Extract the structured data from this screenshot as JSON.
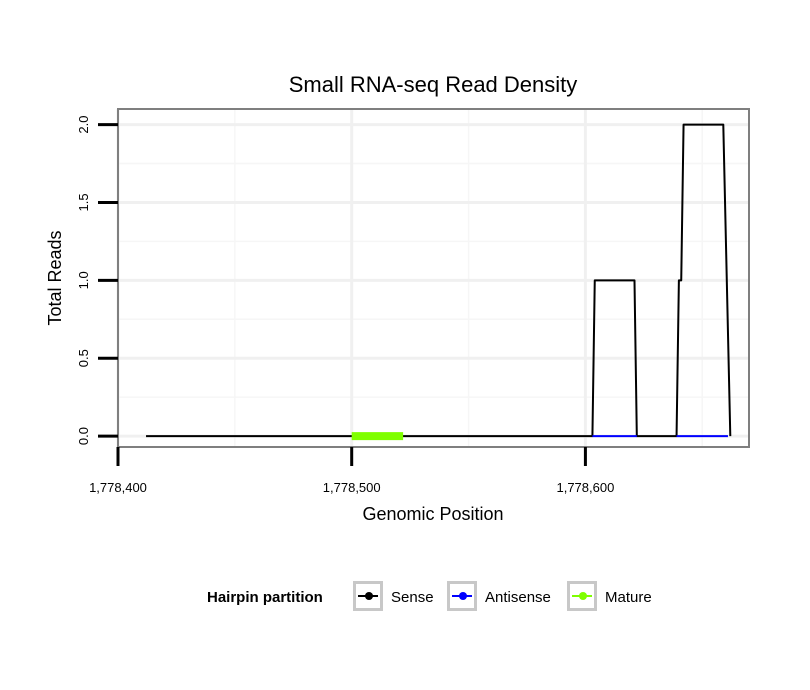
{
  "chart_data": {
    "type": "line",
    "title": "Small RNA-seq Read Density",
    "xlabel": "Genomic Position",
    "ylabel": "Total Reads",
    "xlim": [
      1778400,
      1778670
    ],
    "ylim": [
      -0.07,
      2.1
    ],
    "x_ticks": [
      1778400,
      1778500,
      1778600
    ],
    "x_tick_labels": [
      "1,778,400",
      "1,778,500",
      "1,778,600"
    ],
    "y_ticks": [
      0,
      0.5,
      1,
      1.5,
      2
    ],
    "y_tick_labels": [
      "0.0",
      "0.5",
      "1.0",
      "1.5",
      "2.0"
    ],
    "grid": true,
    "legend_position": "bottom",
    "legend_title": "Hairpin partition",
    "series": [
      {
        "name": "Sense",
        "color": "#000000",
        "points": [
          [
            1778412,
            0
          ],
          [
            1778603,
            0
          ],
          [
            1778604,
            1.0
          ],
          [
            1778621,
            1.0
          ],
          [
            1778622,
            0
          ],
          [
            1778639,
            0
          ],
          [
            1778640,
            1.0
          ],
          [
            1778641,
            1.0
          ],
          [
            1778642,
            2.0
          ],
          [
            1778659,
            2.0
          ],
          [
            1778662,
            0
          ]
        ]
      },
      {
        "name": "Antisense",
        "color": "#0000ff",
        "points": [
          [
            1778603,
            0
          ],
          [
            1778622,
            0
          ],
          [
            1778623,
            null
          ],
          [
            1778639,
            0
          ],
          [
            1778661,
            0
          ]
        ]
      },
      {
        "name": "Mature",
        "color": "#7fff00",
        "points": [
          [
            1778500,
            0
          ],
          [
            1778522,
            0
          ]
        ]
      }
    ]
  }
}
